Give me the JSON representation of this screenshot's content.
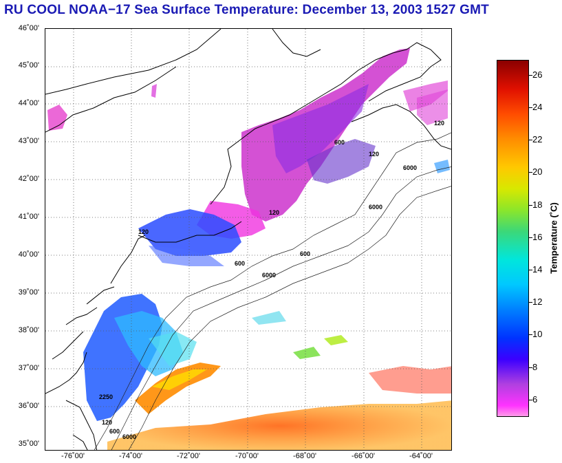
{
  "title": "RU COOL  NOAA−17  Sea Surface Temperature:  December 13, 2003 1527 GMT",
  "latitude_labels": [
    "46˚00'",
    "45˚00'",
    "44˚00'",
    "43˚00'",
    "42˚00'",
    "41˚00'",
    "40˚00'",
    "39˚00'",
    "38˚00'",
    "37˚00'",
    "36˚00'",
    "35˚00'"
  ],
  "longitude_labels": [
    "-76˚00'",
    "-74˚00'",
    "-72˚00'",
    "-70˚00'",
    "-68˚00'",
    "-66˚00'",
    "-64˚00'"
  ],
  "colorbar": {
    "label": "Temperature (˚C)",
    "ticks": [
      "26",
      "24",
      "22",
      "20",
      "18",
      "16",
      "14",
      "12",
      "10",
      "8",
      "6"
    ],
    "range": [
      5,
      27
    ]
  },
  "contour_labels": [
    "120",
    "600",
    "6000",
    "120",
    "600",
    "6000",
    "120",
    "600",
    "6000",
    "120",
    "600",
    "6000",
    "120",
    "2250"
  ],
  "colors": {
    "title": "#1a1ab4",
    "coastline": "#000000",
    "grid": "#555555"
  }
}
